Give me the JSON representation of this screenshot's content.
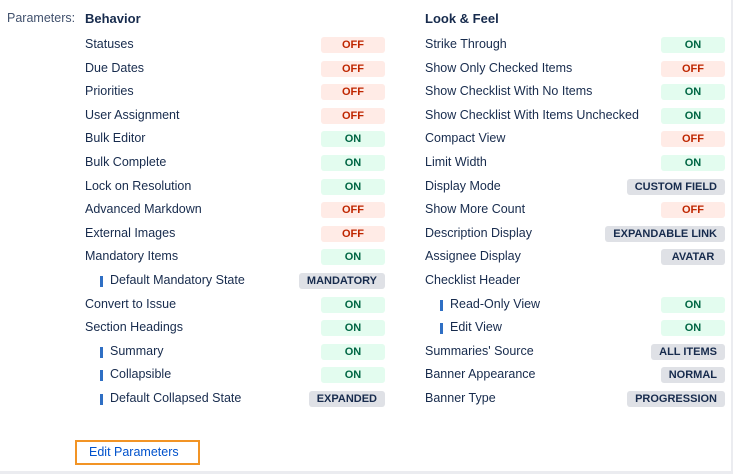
{
  "parameters_label": "Parameters:",
  "behavior": {
    "title": "Behavior",
    "items": [
      {
        "label": "Statuses",
        "value": "OFF",
        "kind": "off"
      },
      {
        "label": "Due Dates",
        "value": "OFF",
        "kind": "off"
      },
      {
        "label": "Priorities",
        "value": "OFF",
        "kind": "off"
      },
      {
        "label": "User Assignment",
        "value": "OFF",
        "kind": "off"
      },
      {
        "label": "Bulk Editor",
        "value": "ON",
        "kind": "on"
      },
      {
        "label": "Bulk Complete",
        "value": "ON",
        "kind": "on"
      },
      {
        "label": "Lock on Resolution",
        "value": "ON",
        "kind": "on"
      },
      {
        "label": "Advanced Markdown",
        "value": "OFF",
        "kind": "off"
      },
      {
        "label": "External Images",
        "value": "OFF",
        "kind": "off"
      },
      {
        "label": "Mandatory Items",
        "value": "ON",
        "kind": "on"
      },
      {
        "label": "Default Mandatory State",
        "value": "MANDATORY",
        "kind": "gen",
        "indent": true
      },
      {
        "label": "Convert to Issue",
        "value": "ON",
        "kind": "on"
      },
      {
        "label": "Section Headings",
        "value": "ON",
        "kind": "on"
      },
      {
        "label": "Summary",
        "value": "ON",
        "kind": "on",
        "indent": true
      },
      {
        "label": "Collapsible",
        "value": "ON",
        "kind": "on",
        "indent": true
      },
      {
        "label": "Default Collapsed State",
        "value": "EXPANDED",
        "kind": "gen",
        "indent": true
      }
    ]
  },
  "look_feel": {
    "title": "Look & Feel",
    "items": [
      {
        "label": "Strike Through",
        "value": "ON",
        "kind": "on"
      },
      {
        "label": "Show Only Checked Items",
        "value": "OFF",
        "kind": "off"
      },
      {
        "label": "Show Checklist With No Items",
        "value": "ON",
        "kind": "on"
      },
      {
        "label": "Show Checklist With Items Unchecked",
        "value": "ON",
        "kind": "on"
      },
      {
        "label": "Compact View",
        "value": "OFF",
        "kind": "off"
      },
      {
        "label": "Limit Width",
        "value": "ON",
        "kind": "on"
      },
      {
        "label": "Display Mode",
        "value": "CUSTOM FIELD",
        "kind": "gen"
      },
      {
        "label": "Show More Count",
        "value": "OFF",
        "kind": "off"
      },
      {
        "label": "Description Display",
        "value": "EXPANDABLE LINK",
        "kind": "gen"
      },
      {
        "label": "Assignee Display",
        "value": "AVATAR",
        "kind": "gen"
      },
      {
        "label": "Checklist Header",
        "value": null,
        "kind": ""
      },
      {
        "label": "Read-Only View",
        "value": "ON",
        "kind": "on",
        "indent": true
      },
      {
        "label": "Edit View",
        "value": "ON",
        "kind": "on",
        "indent": true
      },
      {
        "label": "Summaries' Source",
        "value": "ALL ITEMS",
        "kind": "gen"
      },
      {
        "label": "Banner Appearance",
        "value": "NORMAL",
        "kind": "gen"
      },
      {
        "label": "Banner Type",
        "value": "PROGRESSION",
        "kind": "gen"
      }
    ]
  },
  "edit_button": "Edit Parameters"
}
